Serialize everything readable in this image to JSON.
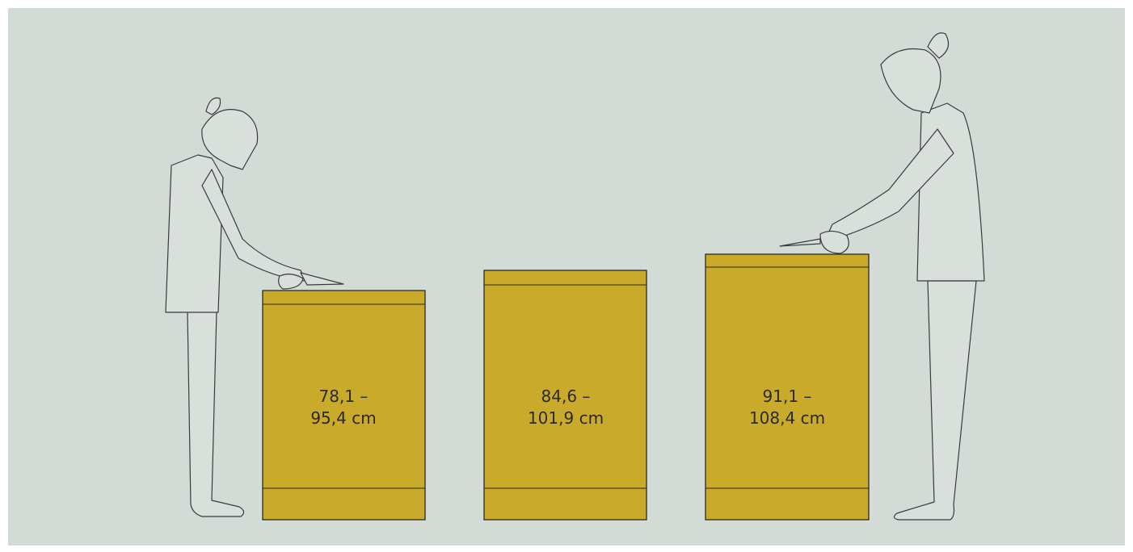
{
  "cabinets": [
    {
      "label_lines": [
        "78,1 –",
        "95,4 cm"
      ]
    },
    {
      "label_lines": [
        "84,6 –",
        "101,9 cm"
      ]
    },
    {
      "label_lines": [
        "91,1 –",
        "108,4 cm"
      ]
    }
  ]
}
